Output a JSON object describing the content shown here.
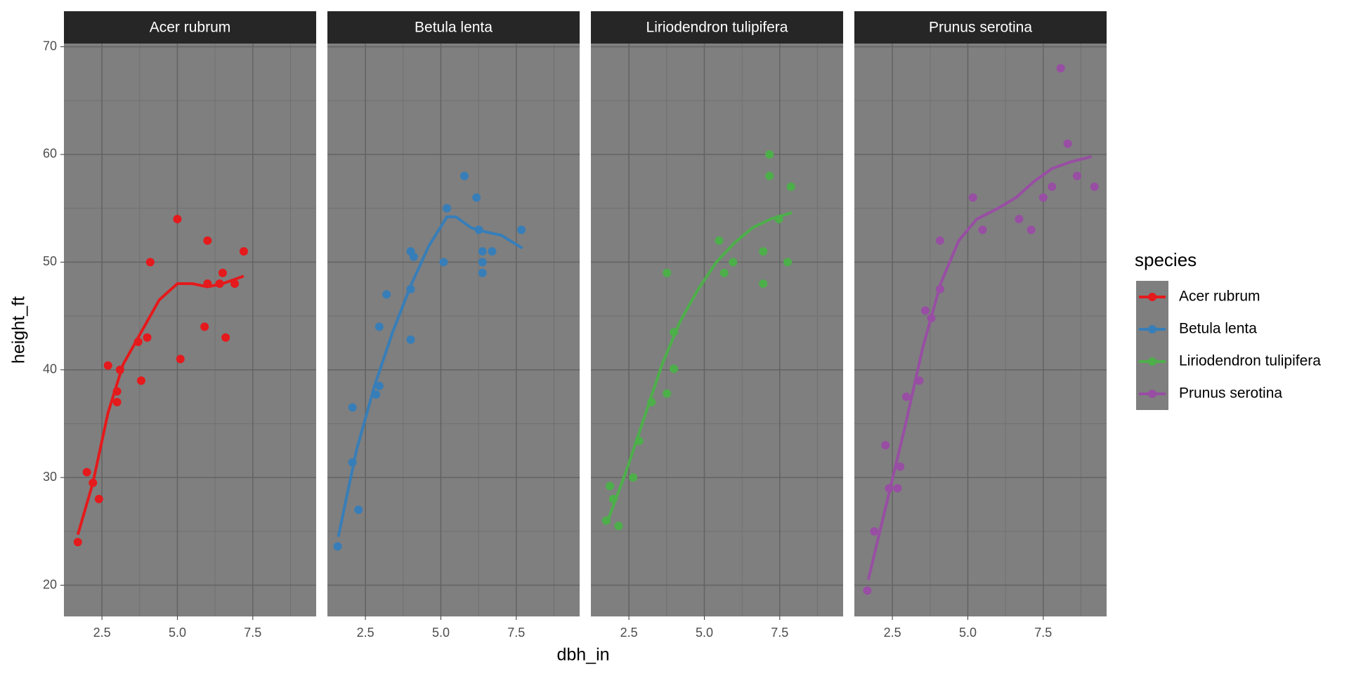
{
  "chart_data": {
    "type": "scatter",
    "x_label": "dbh_in",
    "y_label": "height_ft",
    "legend_title": "species",
    "legend_position": "right",
    "xlim": [
      1.24,
      9.6
    ],
    "xticks": [
      2.5,
      {
        "value": 5,
        "label": "5.0"
      },
      7.5
    ],
    "ylim": [
      17.1,
      70.3
    ],
    "yticks": [
      20,
      30,
      40,
      50,
      60,
      70
    ],
    "grid": true,
    "minor_grid": true,
    "series": [
      {
        "name": "Acer rubrum",
        "color": "#e41a1c",
        "x": [
          1.7,
          2.0,
          2.2,
          2.4,
          2.7,
          3.0,
          3.0,
          3.1,
          3.7,
          3.8,
          4.0,
          4.1,
          5.0,
          5.1,
          5.9,
          6.0,
          6.0,
          6.4,
          6.5,
          6.6,
          6.9,
          7.2
        ],
        "values": [
          24,
          30.5,
          29.5,
          28,
          40.4,
          38,
          37,
          40,
          42.6,
          39,
          43,
          50,
          54,
          41,
          44,
          52,
          48,
          48,
          49,
          43,
          48,
          51
        ],
        "smooth": {
          "x": [
            1.7,
            2.2,
            2.7,
            3.2,
            3.8,
            4.4,
            5.0,
            5.5,
            6.0,
            6.5,
            7.2
          ],
          "values": [
            24.7,
            29.5,
            36,
            40.5,
            43.5,
            46.5,
            48,
            48,
            47.7,
            48,
            48.7
          ]
        }
      },
      {
        "name": "Betula lenta",
        "color": "#377eb8",
        "x": [
          1.58,
          2.07,
          2.07,
          2.27,
          2.85,
          2.96,
          2.96,
          3.2,
          4.0,
          4.0,
          4.0,
          4.1,
          5.09,
          5.2,
          5.78,
          6.18,
          6.26,
          6.38,
          6.38,
          6.38,
          6.7,
          7.67
        ],
        "values": [
          23.6,
          36.5,
          31.4,
          27,
          37.7,
          38.5,
          44,
          47,
          51,
          47.5,
          42.8,
          50.5,
          50,
          55,
          58,
          56,
          53,
          51,
          50,
          49,
          51,
          53
        ],
        "smooth": {
          "x": [
            1.6,
            2.2,
            2.8,
            3.4,
            4.0,
            4.6,
            5.2,
            5.5,
            6.0,
            6.5,
            7.0,
            7.7
          ],
          "values": [
            24.5,
            32.5,
            38.5,
            43.5,
            47.8,
            51.5,
            54.2,
            54.2,
            53.2,
            52.8,
            52.5,
            51.3
          ]
        }
      },
      {
        "name": "Liriodendron tulipifera",
        "color": "#4daf4a",
        "x": [
          1.75,
          1.87,
          1.98,
          2.16,
          2.64,
          2.84,
          3.25,
          3.76,
          3.76,
          3.99,
          3.99,
          5.49,
          5.66,
          5.95,
          6.95,
          6.95,
          7.16,
          7.16,
          7.47,
          7.76,
          7.87
        ],
        "values": [
          26,
          29.2,
          28,
          25.5,
          30,
          33.4,
          37,
          49,
          37.8,
          43.5,
          40.1,
          52,
          49,
          50,
          51,
          48,
          60,
          58,
          54,
          50,
          57
        ],
        "smooth": {
          "x": [
            1.8,
            2.4,
            3.0,
            3.6,
            4.2,
            4.8,
            5.4,
            6.0,
            6.6,
            7.2,
            7.9
          ],
          "values": [
            26,
            30.5,
            35.5,
            40.5,
            44.5,
            47.5,
            50,
            51.8,
            53.2,
            54,
            54.6
          ]
        }
      },
      {
        "name": "Prunus serotina",
        "color": "#984ea3",
        "x": [
          1.67,
          1.9,
          2.27,
          2.39,
          2.67,
          2.76,
          2.96,
          3.39,
          3.59,
          3.79,
          4.08,
          4.08,
          5.17,
          5.49,
          6.7,
          7.1,
          7.5,
          7.79,
          8.08,
          8.31,
          8.62,
          9.2
        ],
        "values": [
          19.5,
          25,
          33,
          29,
          29,
          31,
          37.5,
          39,
          45.5,
          44.8,
          52,
          47.5,
          56,
          53,
          54,
          53,
          56,
          57,
          68,
          61,
          58,
          57
        ],
        "smooth": {
          "x": [
            1.7,
            2.3,
            2.9,
            3.5,
            4.1,
            4.7,
            5.3,
            6.0,
            6.6,
            7.2,
            7.8,
            8.4,
            9.1
          ],
          "values": [
            20.5,
            27.5,
            34.5,
            42,
            48,
            52,
            54,
            55,
            56,
            57.5,
            58.7,
            59.3,
            59.8
          ]
        }
      }
    ]
  }
}
